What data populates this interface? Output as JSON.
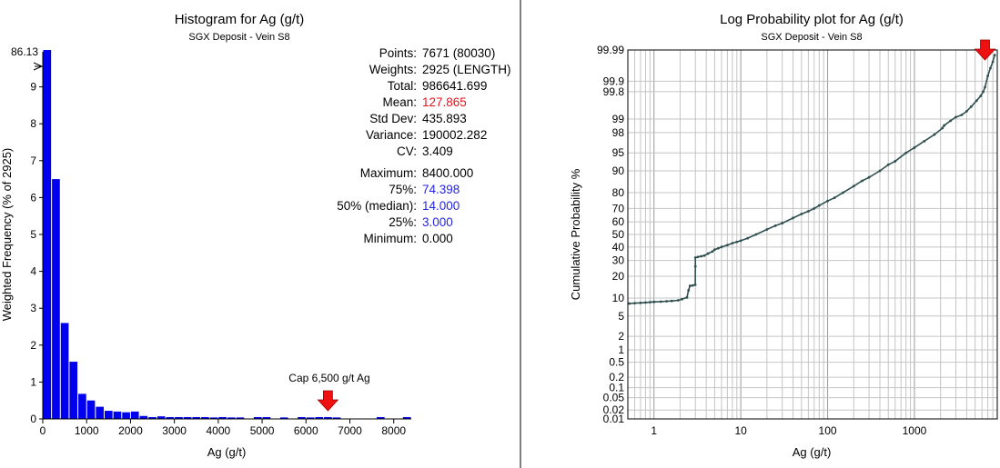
{
  "chart_data": [
    {
      "type": "bar",
      "title": "Histogram for Ag (g/t)",
      "subtitle": "SGX Deposit - Vein S8",
      "xlabel": "Ag (g/t)",
      "ylabel": "Weighted Frequency (% of 2925)",
      "xlim": [
        0,
        8400
      ],
      "ylim": [
        0,
        10
      ],
      "x_ticks": [
        "0",
        "1000",
        "2000",
        "3000",
        "4000",
        "5000",
        "6000",
        "7000",
        "8000"
      ],
      "y_ticks": [
        "0",
        "1",
        "2",
        "3",
        "4",
        "5",
        "6",
        "7",
        "8",
        "9"
      ],
      "bin_width": 200,
      "bins": [
        [
          0,
          86.13
        ],
        [
          200,
          6.5
        ],
        [
          400,
          2.6
        ],
        [
          600,
          1.55
        ],
        [
          800,
          0.68
        ],
        [
          1000,
          0.5
        ],
        [
          1200,
          0.33
        ],
        [
          1400,
          0.22
        ],
        [
          1600,
          0.2
        ],
        [
          1800,
          0.18
        ],
        [
          2000,
          0.2
        ],
        [
          2200,
          0.08
        ],
        [
          2400,
          0.05
        ],
        [
          2600,
          0.07
        ],
        [
          2800,
          0.05
        ],
        [
          3000,
          0.05
        ],
        [
          3200,
          0.05
        ],
        [
          3400,
          0.05
        ],
        [
          3600,
          0.05
        ],
        [
          3800,
          0.04
        ],
        [
          4000,
          0.05
        ],
        [
          4200,
          0.04
        ],
        [
          4400,
          0.04
        ],
        [
          4800,
          0.05
        ],
        [
          5000,
          0.05
        ],
        [
          5400,
          0.04
        ],
        [
          5800,
          0.05
        ],
        [
          6000,
          0.04
        ],
        [
          6200,
          0.05
        ],
        [
          6400,
          0.05
        ],
        [
          6600,
          0.04
        ],
        [
          7600,
          0.05
        ],
        [
          8200,
          0.05
        ]
      ],
      "bar_color": "#0000ee",
      "clipped_label": "86.13",
      "annotation": {
        "text": "Cap 6,500 g/t Ag",
        "x": 6500
      },
      "stats": [
        {
          "label": "Points:",
          "value": "7671 (80030)",
          "color": "#000000"
        },
        {
          "label": "Weights:",
          "value": "2925 (LENGTH)",
          "color": "#000000"
        },
        {
          "label": "Total:",
          "value": "986641.699",
          "color": "#000000"
        },
        {
          "label": "Mean:",
          "value": "127.865",
          "color": "#e8121f"
        },
        {
          "label": "Std Dev:",
          "value": "435.893",
          "color": "#000000"
        },
        {
          "label": "Variance:",
          "value": "190002.282",
          "color": "#000000"
        },
        {
          "label": "CV:",
          "value": "3.409",
          "color": "#000000"
        },
        {
          "label": "Maximum:",
          "value": "8400.000",
          "color": "#000000"
        },
        {
          "label": "75%:",
          "value": "74.398",
          "color": "#2424e6"
        },
        {
          "label": "50% (median):",
          "value": "14.000",
          "color": "#2424e6"
        },
        {
          "label": "25%:",
          "value": "3.000",
          "color": "#2424e6"
        },
        {
          "label": "Minimum:",
          "value": "0.000",
          "color": "#000000"
        }
      ]
    },
    {
      "type": "scatter",
      "title": "Log Probability plot for Ag (g/t)",
      "subtitle": "SGX Deposit - Vein S8",
      "xlabel": "Ag (g/t)",
      "ylabel": "Cumulative Probability %",
      "x_scale": "log",
      "y_scale": "probability",
      "xlim": [
        0.5,
        9000
      ],
      "ylim": [
        0.01,
        99.99
      ],
      "x_ticks": [
        "1",
        "10",
        "100",
        "1000"
      ],
      "y_ticks": [
        "99.99",
        "99.9",
        "99.8",
        "99",
        "98",
        "95",
        "90",
        "80",
        "70",
        "60",
        "50",
        "40",
        "30",
        "20",
        "10",
        "5",
        "2",
        "1",
        "0.5",
        "0.2",
        "0.1",
        "0.05",
        "0.02",
        "0.01"
      ],
      "grid": true,
      "point_color": "#2f4f4f",
      "annotation": {
        "text": "",
        "x": 6500
      },
      "points": [
        [
          0.52,
          8.2
        ],
        [
          0.6,
          8.3
        ],
        [
          0.7,
          8.4
        ],
        [
          0.8,
          8.5
        ],
        [
          0.9,
          8.6
        ],
        [
          1.0,
          8.7
        ],
        [
          1.2,
          8.8
        ],
        [
          1.4,
          8.9
        ],
        [
          1.6,
          9.0
        ],
        [
          1.9,
          9.2
        ],
        [
          2.1,
          9.6
        ],
        [
          2.4,
          10.2
        ],
        [
          2.5,
          13
        ],
        [
          2.6,
          15
        ],
        [
          2.8,
          15.2
        ],
        [
          2.99,
          15.5
        ],
        [
          3.0,
          26
        ],
        [
          3.0,
          32
        ],
        [
          3.2,
          32.5
        ],
        [
          3.5,
          33
        ],
        [
          3.8,
          33.5
        ],
        [
          4.2,
          35
        ],
        [
          4.7,
          36.5
        ],
        [
          5.0,
          38
        ],
        [
          5.5,
          39
        ],
        [
          6.0,
          40
        ],
        [
          7,
          41.5
        ],
        [
          8,
          43
        ],
        [
          9,
          44
        ],
        [
          10,
          45
        ],
        [
          12,
          47
        ],
        [
          15,
          50
        ],
        [
          20,
          54
        ],
        [
          25,
          57
        ],
        [
          30,
          59
        ],
        [
          40,
          63
        ],
        [
          50,
          66
        ],
        [
          60,
          68
        ],
        [
          70,
          70
        ],
        [
          80,
          72
        ],
        [
          100,
          75
        ],
        [
          120,
          77
        ],
        [
          150,
          80
        ],
        [
          200,
          83.5
        ],
        [
          250,
          86
        ],
        [
          300,
          87.5
        ],
        [
          400,
          90
        ],
        [
          500,
          92
        ],
        [
          600,
          93
        ],
        [
          800,
          95
        ],
        [
          1000,
          96
        ],
        [
          1300,
          97
        ],
        [
          1700,
          97.8
        ],
        [
          2100,
          98.4
        ],
        [
          2200,
          98.6
        ],
        [
          2600,
          98.9
        ],
        [
          3000,
          99.1
        ],
        [
          3500,
          99.2
        ],
        [
          4000,
          99.35
        ],
        [
          4500,
          99.5
        ],
        [
          5200,
          99.65
        ],
        [
          5800,
          99.74
        ],
        [
          6200,
          99.8
        ],
        [
          6500,
          99.85
        ],
        [
          7000,
          99.93
        ],
        [
          7500,
          99.96
        ],
        [
          8000,
          99.975
        ],
        [
          8400,
          99.985
        ]
      ]
    }
  ]
}
